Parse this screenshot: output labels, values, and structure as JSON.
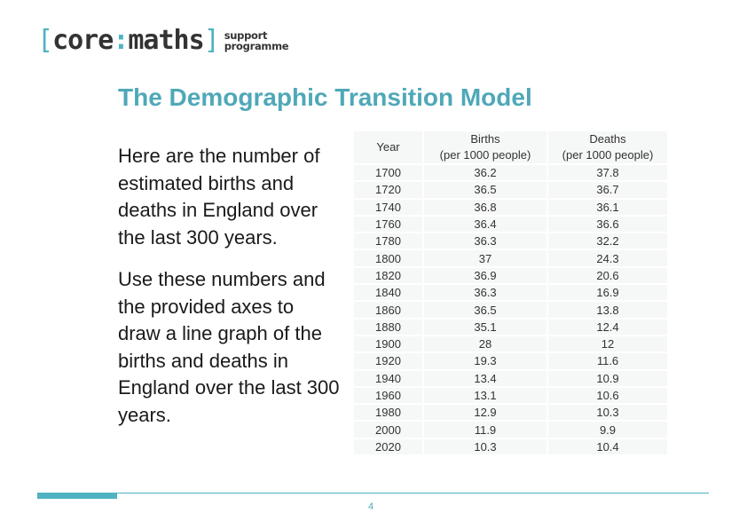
{
  "logo": {
    "bracket_open": "[",
    "word1": "core",
    "colon": ":",
    "word2": "maths",
    "bracket_close": "]",
    "sub_line1": "support",
    "sub_line2": "programme"
  },
  "title": "The Demographic Transition Model",
  "paragraph1": "Here are the number of estimated births and deaths in England over the last 300 years.",
  "paragraph2": "Use these numbers and the provided axes to draw a line graph of the births and deaths in England over the last 300 years.",
  "table": {
    "headers": {
      "year": "Year",
      "births_line1": "Births",
      "births_line2": "(per 1000 people)",
      "deaths_line1": "Deaths",
      "deaths_line2": "(per 1000 people)"
    },
    "rows": [
      {
        "year": "1700",
        "births": "36.2",
        "deaths": "37.8"
      },
      {
        "year": "1720",
        "births": "36.5",
        "deaths": "36.7"
      },
      {
        "year": "1740",
        "births": "36.8",
        "deaths": "36.1"
      },
      {
        "year": "1760",
        "births": "36.4",
        "deaths": "36.6"
      },
      {
        "year": "1780",
        "births": "36.3",
        "deaths": "32.2"
      },
      {
        "year": "1800",
        "births": "37",
        "deaths": "24.3"
      },
      {
        "year": "1820",
        "births": "36.9",
        "deaths": "20.6"
      },
      {
        "year": "1840",
        "births": "36.3",
        "deaths": "16.9"
      },
      {
        "year": "1860",
        "births": "36.5",
        "deaths": "13.8"
      },
      {
        "year": "1880",
        "births": "35.1",
        "deaths": "12.4"
      },
      {
        "year": "1900",
        "births": "28",
        "deaths": "12"
      },
      {
        "year": "1920",
        "births": "19.3",
        "deaths": "11.6"
      },
      {
        "year": "1940",
        "births": "13.4",
        "deaths": "10.9"
      },
      {
        "year": "1960",
        "births": "13.1",
        "deaths": "10.6"
      },
      {
        "year": "1980",
        "births": "12.9",
        "deaths": "10.3"
      },
      {
        "year": "2000",
        "births": "11.9",
        "deaths": "9.9"
      },
      {
        "year": "2020",
        "births": "10.3",
        "deaths": "10.4"
      }
    ]
  },
  "page_number": "4",
  "colors": {
    "accent": "#4fb3c2",
    "title": "#4fa8b8",
    "cell_bg": "#f6f7f7"
  }
}
